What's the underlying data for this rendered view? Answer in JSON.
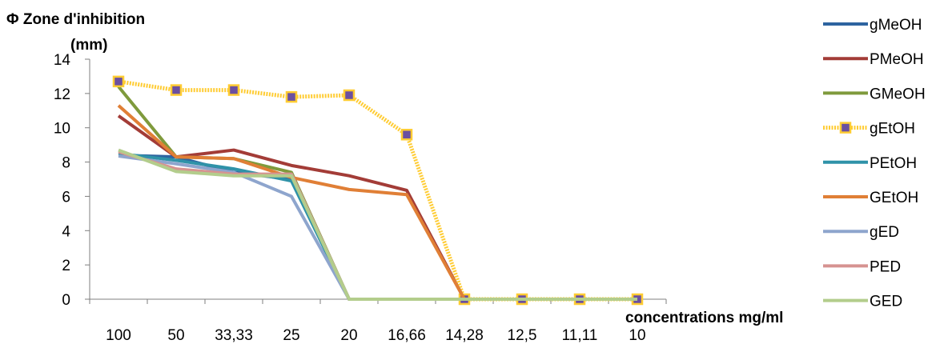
{
  "chart_data": {
    "type": "line",
    "ylabel_line1": "Φ Zone d'inhibition",
    "ylabel_line2": "(mm)",
    "xlabel": "concentrations mg/ml",
    "categories": [
      "100",
      "50",
      "33,33",
      "25",
      "20",
      "16,66",
      "14,28",
      "12,5",
      "11,11",
      "10"
    ],
    "ylim": [
      0,
      14
    ],
    "yticks": [
      0,
      2,
      4,
      6,
      8,
      10,
      12,
      14
    ],
    "grid": false,
    "legend_position": "right",
    "series": [
      {
        "name": "gMeOH",
        "color": "#2e64a0",
        "values": [
          8.4,
          8.3,
          7.4,
          7.0,
          0,
          0,
          0,
          0,
          0,
          0
        ]
      },
      {
        "name": "PMeOH",
        "color": "#a33c37",
        "values": [
          10.7,
          8.3,
          8.7,
          7.8,
          7.2,
          6.35,
          0,
          0,
          0,
          0
        ]
      },
      {
        "name": "GMeOH",
        "color": "#7f9a3c",
        "values": [
          12.4,
          8.3,
          8.2,
          7.4,
          0,
          0,
          0,
          0,
          0,
          0
        ]
      },
      {
        "name": "gEtOH",
        "color": "#ffcc33",
        "marker": "square",
        "marker_color": "#6b4fa0",
        "values": [
          12.7,
          12.2,
          12.2,
          11.8,
          11.9,
          9.6,
          0,
          0,
          0,
          0
        ]
      },
      {
        "name": "PEtOH",
        "color": "#2f92a8",
        "values": [
          8.5,
          8.1,
          7.6,
          6.9,
          0,
          0,
          0,
          0,
          0,
          0
        ]
      },
      {
        "name": "GEtOH",
        "color": "#e07f36",
        "values": [
          11.3,
          8.3,
          8.2,
          7.1,
          6.4,
          6.1,
          0,
          0,
          0,
          0
        ]
      },
      {
        "name": "gED",
        "color": "#8ea5cd",
        "values": [
          8.35,
          7.9,
          7.4,
          6.0,
          0,
          0,
          0,
          0,
          0,
          0
        ]
      },
      {
        "name": "PED",
        "color": "#d69391",
        "values": [
          8.6,
          7.6,
          7.3,
          7.3,
          0,
          0,
          0,
          0,
          0,
          0
        ]
      },
      {
        "name": "GED",
        "color": "#b3cd8c",
        "values": [
          8.7,
          7.45,
          7.2,
          7.2,
          0,
          0,
          0,
          0,
          0,
          0
        ]
      }
    ]
  }
}
